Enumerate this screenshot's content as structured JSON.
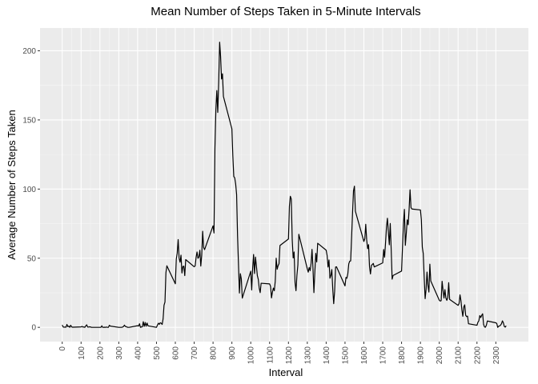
{
  "chart_data": {
    "type": "line",
    "title": "Mean Number of Steps Taken in 5-Minute Intervals",
    "x_label": "Interval",
    "y_label": "Average Number of Steps Taken",
    "grid": true,
    "color": "#000000",
    "xlim": [
      -117.75,
      2472.75
    ],
    "ylim": [
      -10.31,
      216.48
    ],
    "xticks": [
      0,
      100,
      200,
      300,
      400,
      500,
      600,
      700,
      800,
      900,
      1000,
      1100,
      1200,
      1300,
      1400,
      1500,
      1600,
      1700,
      1800,
      1900,
      2000,
      2100,
      2200,
      2300
    ],
    "yticks": [
      0,
      50,
      100,
      150,
      200
    ],
    "x": [
      0,
      5,
      10,
      15,
      20,
      25,
      30,
      35,
      40,
      45,
      50,
      55,
      100,
      105,
      110,
      115,
      120,
      125,
      130,
      135,
      140,
      145,
      150,
      155,
      200,
      205,
      210,
      215,
      220,
      225,
      230,
      235,
      240,
      245,
      250,
      255,
      300,
      305,
      310,
      315,
      320,
      325,
      330,
      335,
      340,
      345,
      350,
      355,
      400,
      405,
      410,
      415,
      420,
      425,
      430,
      435,
      440,
      445,
      450,
      455,
      500,
      505,
      510,
      515,
      520,
      525,
      530,
      535,
      540,
      545,
      550,
      555,
      600,
      605,
      610,
      615,
      620,
      625,
      630,
      635,
      640,
      645,
      650,
      655,
      700,
      705,
      710,
      715,
      720,
      725,
      730,
      735,
      740,
      745,
      750,
      755,
      800,
      805,
      810,
      815,
      820,
      825,
      830,
      835,
      840,
      845,
      850,
      855,
      900,
      905,
      910,
      915,
      920,
      925,
      930,
      935,
      940,
      945,
      950,
      955,
      1000,
      1005,
      1010,
      1015,
      1020,
      1025,
      1030,
      1035,
      1040,
      1045,
      1050,
      1055,
      1100,
      1105,
      1110,
      1115,
      1120,
      1125,
      1130,
      1135,
      1140,
      1145,
      1150,
      1155,
      1200,
      1205,
      1210,
      1215,
      1220,
      1225,
      1230,
      1235,
      1240,
      1245,
      1250,
      1255,
      1300,
      1305,
      1310,
      1315,
      1320,
      1325,
      1330,
      1335,
      1340,
      1345,
      1350,
      1355,
      1400,
      1405,
      1410,
      1415,
      1420,
      1425,
      1430,
      1435,
      1440,
      1445,
      1450,
      1455,
      1500,
      1505,
      1510,
      1515,
      1520,
      1525,
      1530,
      1535,
      1540,
      1545,
      1550,
      1555,
      1600,
      1605,
      1610,
      1615,
      1620,
      1625,
      1630,
      1635,
      1640,
      1645,
      1650,
      1655,
      1700,
      1705,
      1710,
      1715,
      1720,
      1725,
      1730,
      1735,
      1740,
      1745,
      1750,
      1755,
      1800,
      1805,
      1810,
      1815,
      1820,
      1825,
      1830,
      1835,
      1840,
      1845,
      1850,
      1855,
      1900,
      1905,
      1910,
      1915,
      1920,
      1925,
      1930,
      1935,
      1940,
      1945,
      1950,
      1955,
      2000,
      2005,
      2010,
      2015,
      2020,
      2025,
      2030,
      2035,
      2040,
      2045,
      2050,
      2055,
      2100,
      2105,
      2110,
      2115,
      2120,
      2125,
      2130,
      2135,
      2140,
      2145,
      2150,
      2155,
      2200,
      2205,
      2210,
      2215,
      2220,
      2225,
      2230,
      2235,
      2240,
      2245,
      2250,
      2255,
      2300,
      2305,
      2310,
      2315,
      2320,
      2325,
      2330,
      2335,
      2340,
      2345,
      2350,
      2355
    ],
    "values": [
      1.7,
      0.3,
      0.1,
      0.2,
      0.1,
      2.1,
      0.5,
      0.9,
      0,
      1.5,
      0.3,
      0.1,
      0.3,
      0.7,
      0.2,
      0.3,
      0,
      1.1,
      1.8,
      0.2,
      0.2,
      0.4,
      0.3,
      0,
      0,
      0,
      1.1,
      0,
      0,
      0.1,
      0,
      0.2,
      0,
      0,
      1.5,
      0.9,
      0,
      0,
      0,
      0,
      0.2,
      0.6,
      1.6,
      0.6,
      0.5,
      0.1,
      0,
      0,
      1.2,
      0.9,
      2.6,
      0,
      0.3,
      0.4,
      4.1,
      0.7,
      3.5,
      0.8,
      3.1,
      1.1,
      0,
      1.6,
      3.0,
      2.2,
      3.3,
      3.0,
      2.1,
      6.1,
      16.0,
      18.3,
      39.5,
      44.5,
      31.5,
      49.3,
      53.8,
      63.5,
      50.0,
      47.1,
      52.2,
      39.3,
      44.0,
      44.2,
      37.4,
      49.0,
      43.8,
      44.4,
      50.5,
      54.5,
      49.9,
      50.9,
      55.7,
      44.3,
      52.3,
      69.5,
      57.8,
      56.2,
      73.4,
      68.2,
      129.4,
      157.5,
      171.2,
      155.4,
      177.3,
      206.2,
      195.9,
      179.6,
      183.4,
      167.0,
      143.5,
      124.0,
      109.1,
      108.1,
      103.7,
      96.0,
      66.2,
      45.2,
      24.8,
      38.8,
      35.0,
      21.1,
      40.6,
      27.0,
      42.4,
      52.7,
      38.9,
      50.8,
      44.3,
      37.4,
      34.7,
      28.3,
      25.1,
      31.9,
      31.4,
      29.7,
      21.3,
      25.5,
      28.4,
      26.5,
      33.4,
      50.0,
      42.0,
      44.6,
      46.0,
      59.2,
      63.9,
      87.6,
      94.8,
      92.8,
      63.4,
      50.2,
      54.5,
      32.4,
      26.5,
      37.7,
      45.1,
      67.3,
      42.3,
      39.9,
      43.3,
      41.0,
      46.2,
      56.4,
      42.8,
      25.1,
      40.0,
      53.5,
      47.3,
      60.8,
      55.8,
      52.0,
      43.6,
      48.7,
      35.5,
      37.5,
      41.8,
      27.5,
      17.1,
      26.1,
      43.6,
      43.8,
      30.0,
      36.1,
      35.5,
      38.8,
      46.0,
      47.8,
      48.1,
      65.3,
      82.9,
      98.7,
      102.1,
      84.0,
      62.1,
      64.1,
      74.5,
      63.2,
      56.9,
      59.8,
      43.9,
      38.6,
      44.7,
      45.5,
      46.2,
      43.7,
      46.6,
      56.3,
      50.7,
      61.2,
      72.7,
      78.9,
      68.9,
      59.7,
      75.1,
      56.5,
      34.8,
      37.5,
      40.7,
      58.0,
      74.7,
      85.3,
      59.3,
      67.8,
      77.7,
      74.2,
      85.3,
      99.5,
      86.6,
      85.6,
      84.9,
      77.8,
      58.0,
      53.4,
      36.3,
      20.7,
      27.4,
      40.0,
      30.2,
      25.5,
      45.7,
      33.5,
      19.6,
      19.0,
      19.3,
      33.3,
      26.8,
      21.2,
      27.3,
      21.3,
      19.5,
      21.3,
      32.3,
      20.2,
      15.9,
      17.2,
      23.5,
      19.2,
      12.5,
      8.0,
      14.7,
      16.3,
      8.7,
      7.8,
      8.1,
      2.6,
      1.5,
      3.7,
      4.8,
      8.5,
      7.1,
      8.7,
      9.8,
      2.2,
      0.3,
      0.1,
      1.6,
      4.6,
      3.3,
      2.8,
      0,
      0.8,
      1.0,
      1.6,
      2.6,
      4.7,
      3.3,
      0.6,
      0.2,
      1.1
    ]
  }
}
